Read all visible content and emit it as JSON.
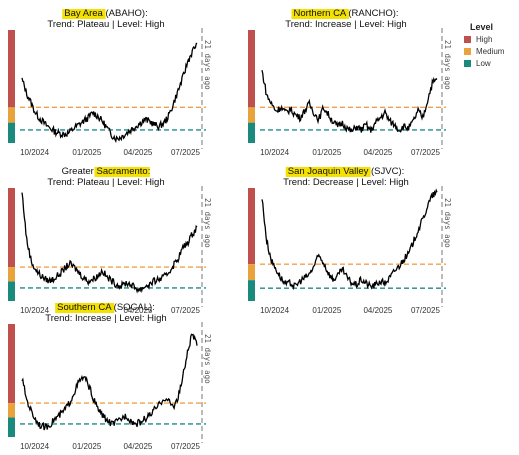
{
  "colors": {
    "high": "#C0504D",
    "medium": "#E8A33D",
    "low": "#1A8A7E",
    "medium_line": "#F5A040",
    "low_line": "#1E8A8A",
    "highlight": "#F5E100",
    "series": "#000000"
  },
  "legend": {
    "title": "Level",
    "items": [
      {
        "label": "High",
        "color": "#C0504D"
      },
      {
        "label": "Medium",
        "color": "#E8A33D"
      },
      {
        "label": "Low",
        "color": "#1A8A7E"
      }
    ]
  },
  "chart_data": [
    {
      "type": "line",
      "region": "Bay Area",
      "code": "(ABAHO):",
      "subtitle": "Trend: Plateau  | Level: High",
      "x_ticks": [
        "10/2024",
        "01/2025",
        "04/2025",
        "07/2025"
      ],
      "vline_label": "21 days ago",
      "medium_threshold": 0.26,
      "low_threshold": 0.0,
      "y": [
        0.58,
        0.42,
        0.3,
        0.18,
        0.12,
        0.06,
        0.02,
        -0.02,
        -0.04,
        -0.05,
        -0.03,
        0.02,
        0.06,
        0.1,
        0.14,
        0.2,
        0.16,
        0.1,
        0.02,
        -0.06,
        -0.1,
        -0.08,
        -0.04,
        0.0,
        0.04,
        0.08,
        0.12,
        0.1,
        0.06,
        0.04,
        0.08,
        0.16,
        0.3,
        0.45,
        0.6,
        0.78,
        0.9,
        1.0
      ]
    },
    {
      "type": "line",
      "region": "Northern CA",
      "code": "(RANCHO):",
      "subtitle": "Trend: Increase  | Level: High",
      "x_ticks": [
        "10/2024",
        "01/2025",
        "04/2025",
        "07/2025"
      ],
      "vline_label": "21 days ago",
      "medium_threshold": 0.26,
      "low_threshold": 0.0,
      "y": [
        0.68,
        0.4,
        0.3,
        0.22,
        0.26,
        0.2,
        0.24,
        0.18,
        0.14,
        0.22,
        0.3,
        0.2,
        0.12,
        0.26,
        0.18,
        0.1,
        0.04,
        0.08,
        0.02,
        -0.02,
        0.04,
        0.0,
        0.06,
        -0.01,
        0.08,
        0.14,
        0.2,
        0.1,
        0.06,
        0.0,
        0.04,
        0.02,
        0.1,
        0.22,
        0.14,
        0.34,
        0.54,
        0.58
      ]
    },
    {
      "type": "line",
      "region": "Sacramento",
      "prefix": "Greater",
      "code": ":",
      "subtitle": "Trend: Plateau  | Level: High",
      "x_ticks": [
        "10/2024",
        "01/2025",
        "04/2025",
        "07/2025"
      ],
      "vline_label": "21 days ago",
      "medium_threshold": 0.24,
      "low_threshold": 0.0,
      "y": [
        1.1,
        0.55,
        0.3,
        0.2,
        0.14,
        0.1,
        0.08,
        0.12,
        0.16,
        0.22,
        0.28,
        0.24,
        0.18,
        0.12,
        0.08,
        0.1,
        0.14,
        0.2,
        0.12,
        0.08,
        0.04,
        0.02,
        0.06,
        0.04,
        0.0,
        -0.02,
        0.02,
        0.04,
        0.08,
        0.1,
        0.12,
        0.18,
        0.26,
        0.34,
        0.46,
        0.52,
        0.62,
        0.7
      ]
    },
    {
      "type": "line",
      "region": "San Joaquin Valley",
      "code": "(SJVC):",
      "subtitle": "Trend: Decrease  | Level: High",
      "x_ticks": [
        "10/2024",
        "01/2025",
        "04/2025",
        "07/2025"
      ],
      "vline_label": "21 days ago",
      "medium_threshold": 0.28,
      "low_threshold": 0.0,
      "y": [
        1.05,
        0.55,
        0.32,
        0.22,
        0.12,
        0.04,
        0.06,
        0.02,
        0.08,
        0.12,
        0.16,
        0.26,
        0.38,
        0.3,
        0.18,
        0.1,
        0.14,
        0.22,
        0.12,
        0.06,
        0.04,
        0.1,
        0.06,
        0.02,
        0.04,
        0.08,
        0.06,
        0.12,
        0.2,
        0.26,
        0.34,
        0.4,
        0.54,
        0.68,
        0.8,
        0.96,
        1.08,
        1.12
      ]
    },
    {
      "type": "line",
      "region": "Southern CA",
      "code": "(SOCAL):",
      "subtitle": "Trend: Increase  | Level: High",
      "x_ticks": [
        "10/2024",
        "01/2025",
        "04/2025",
        "07/2025"
      ],
      "vline_label": "21 days ago",
      "medium_threshold": 0.24,
      "low_threshold": 0.0,
      "y": [
        0.52,
        0.28,
        0.14,
        0.04,
        -0.02,
        -0.04,
        0.0,
        0.06,
        0.1,
        0.16,
        0.24,
        0.36,
        0.48,
        0.54,
        0.46,
        0.3,
        0.18,
        0.1,
        0.04,
        0.0,
        0.02,
        0.06,
        0.1,
        0.04,
        0.0,
        0.02,
        0.06,
        0.1,
        0.16,
        0.22,
        0.3,
        0.26,
        0.2,
        0.3,
        0.54,
        0.82,
        1.04,
        0.9
      ]
    }
  ]
}
